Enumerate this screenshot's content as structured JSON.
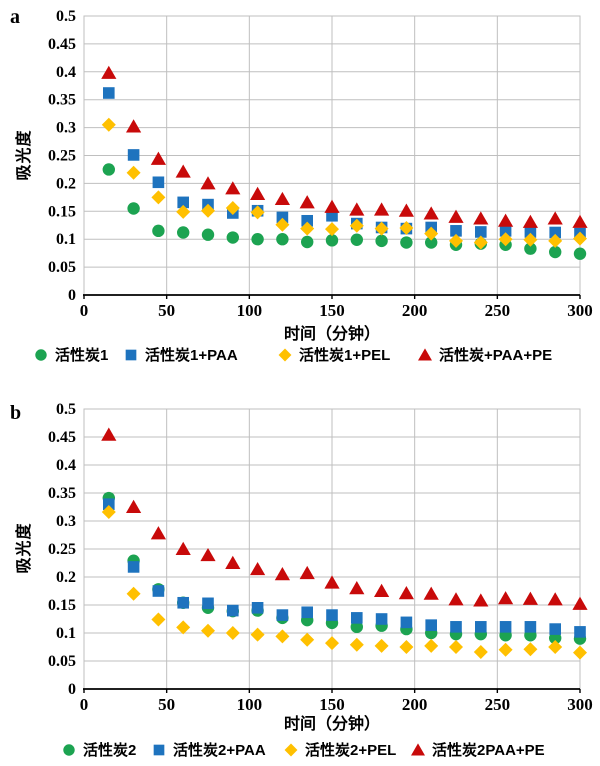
{
  "figure": {
    "background": "#ffffff"
  },
  "colors": {
    "green": "#1CA351",
    "blue": "#1E73BE",
    "yellow": "#FFC000",
    "red": "#C80A0A",
    "grid": "#BFBFBF",
    "axis": "#000000",
    "text": "#000000"
  },
  "chart_data": [
    {
      "type": "scatter",
      "panel_label": "a",
      "ylabel": "吸光度",
      "xlabel": "时间（分钟）",
      "xlim": [
        0,
        300
      ],
      "ylim": [
        0,
        0.5
      ],
      "x_ticks": [
        "0",
        "50",
        "100",
        "150",
        "200",
        "250",
        "300"
      ],
      "y_ticks": [
        "0",
        "0.05",
        "0.1",
        "0.15",
        "0.2",
        "0.25",
        "0.3",
        "0.35",
        "0.4",
        "0.45",
        "0.5"
      ],
      "grid": "on",
      "legend_position": "bottom",
      "x": [
        15,
        30,
        45,
        60,
        75,
        90,
        105,
        120,
        135,
        150,
        165,
        180,
        195,
        210,
        225,
        240,
        255,
        270,
        285,
        300
      ],
      "series": [
        {
          "name": "活性炭1",
          "marker": "circle",
          "color": "#1CA351",
          "values": [
            0.225,
            0.155,
            0.115,
            0.112,
            0.108,
            0.103,
            0.1,
            0.1,
            0.095,
            0.098,
            0.099,
            0.097,
            0.094,
            0.094,
            0.09,
            0.092,
            0.09,
            0.083,
            0.077,
            0.074
          ]
        },
        {
          "name": "活性炭1+PAA",
          "marker": "square",
          "color": "#1E73BE",
          "values": [
            0.362,
            0.251,
            0.202,
            0.166,
            0.162,
            0.147,
            0.151,
            0.139,
            0.133,
            0.142,
            0.128,
            0.121,
            0.119,
            0.121,
            0.115,
            0.113,
            0.115,
            0.113,
            0.112,
            0.11
          ]
        },
        {
          "name": "活性炭1+PEL",
          "marker": "diamond",
          "color": "#FFC000",
          "values": [
            0.305,
            0.219,
            0.175,
            0.149,
            0.151,
            0.156,
            0.148,
            0.126,
            0.119,
            0.118,
            0.124,
            0.119,
            0.12,
            0.11,
            0.097,
            0.094,
            0.1,
            0.099,
            0.097,
            0.101
          ]
        },
        {
          "name": "活性炭+PAA+PE",
          "marker": "triangle",
          "color": "#C80A0A",
          "values": [
            0.398,
            0.302,
            0.244,
            0.221,
            0.2,
            0.191,
            0.181,
            0.172,
            0.166,
            0.158,
            0.153,
            0.153,
            0.151,
            0.146,
            0.14,
            0.137,
            0.133,
            0.131,
            0.137,
            0.131
          ]
        }
      ]
    },
    {
      "type": "scatter",
      "panel_label": "b",
      "ylabel": "吸光度",
      "xlabel": "时间（分钟）",
      "xlim": [
        0,
        300
      ],
      "ylim": [
        0,
        0.5
      ],
      "x_ticks": [
        "0",
        "50",
        "100",
        "150",
        "200",
        "250",
        "300"
      ],
      "y_ticks": [
        "0",
        "0.05",
        "0.1",
        "0.15",
        "0.2",
        "0.25",
        "0.3",
        "0.35",
        "0.4",
        "0.45",
        "0.5"
      ],
      "grid": "on",
      "legend_position": "bottom",
      "x": [
        15,
        30,
        45,
        60,
        75,
        90,
        105,
        120,
        135,
        150,
        165,
        180,
        195,
        210,
        225,
        240,
        255,
        270,
        285,
        300
      ],
      "series": [
        {
          "name": "活性炭2",
          "marker": "circle",
          "color": "#1CA351",
          "values": [
            0.341,
            0.229,
            0.178,
            0.154,
            0.145,
            0.139,
            0.14,
            0.127,
            0.123,
            0.118,
            0.111,
            0.113,
            0.107,
            0.1,
            0.098,
            0.098,
            0.096,
            0.096,
            0.091,
            0.09
          ]
        },
        {
          "name": "活性炭2+PAA",
          "marker": "square",
          "color": "#1E73BE",
          "values": [
            0.33,
            0.218,
            0.175,
            0.154,
            0.153,
            0.14,
            0.145,
            0.132,
            0.137,
            0.132,
            0.127,
            0.125,
            0.119,
            0.114,
            0.111,
            0.111,
            0.111,
            0.111,
            0.107,
            0.102
          ]
        },
        {
          "name": "活性炭2+PEL",
          "marker": "diamond",
          "color": "#FFC000",
          "values": [
            0.316,
            0.17,
            0.124,
            0.11,
            0.104,
            0.1,
            0.097,
            0.094,
            0.088,
            0.082,
            0.079,
            0.077,
            0.075,
            0.077,
            0.075,
            0.066,
            0.07,
            0.071,
            0.075,
            0.065
          ]
        },
        {
          "name": "活性炭2PAA+PE",
          "marker": "triangle",
          "color": "#C80A0A",
          "values": [
            0.454,
            0.325,
            0.278,
            0.25,
            0.239,
            0.225,
            0.214,
            0.205,
            0.207,
            0.19,
            0.18,
            0.175,
            0.171,
            0.17,
            0.16,
            0.158,
            0.162,
            0.161,
            0.16,
            0.152
          ]
        }
      ]
    }
  ]
}
